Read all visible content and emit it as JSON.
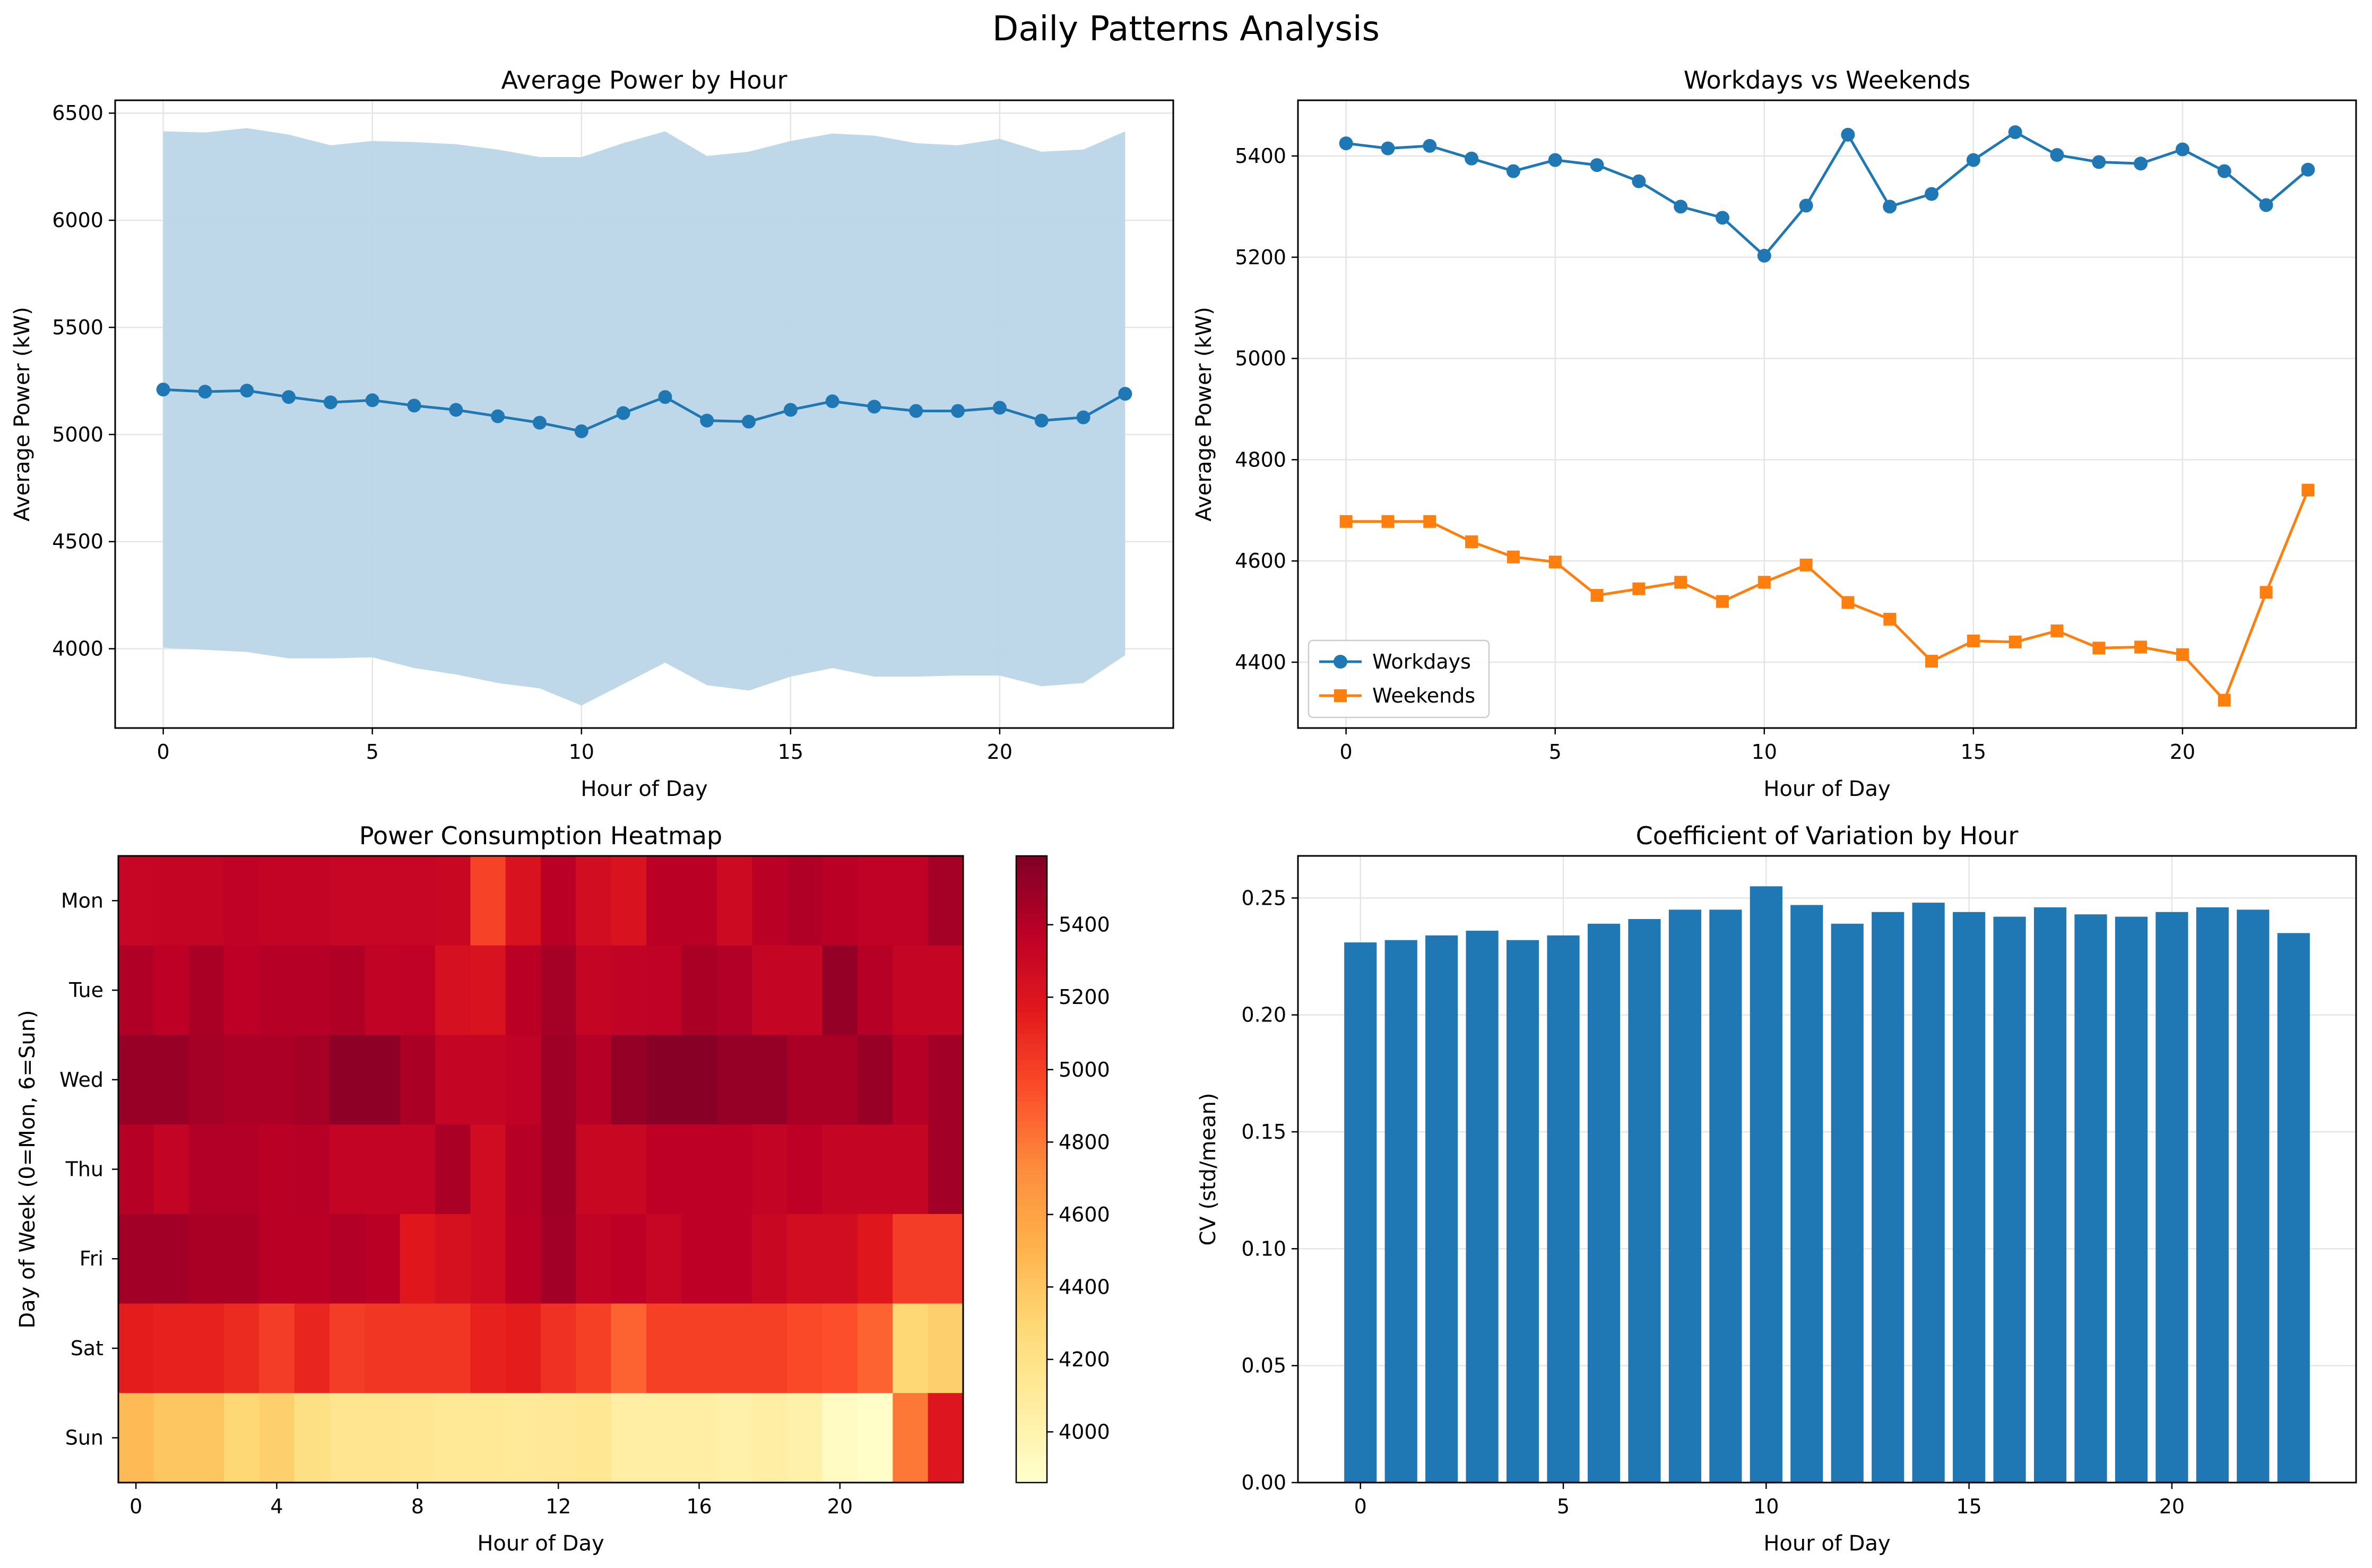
{
  "figure_title": "Daily Patterns Analysis",
  "colors": {
    "blue": "#1f77b4",
    "orange": "#ff7f0e",
    "band": "#bcd6e8",
    "grid": "#e5e5e5"
  },
  "chart_data": [
    {
      "id": "avg-power",
      "type": "line",
      "title": "Average Power by Hour",
      "xlabel": "Hour of Day",
      "ylabel": "Average Power (kW)",
      "x": [
        0,
        1,
        2,
        3,
        4,
        5,
        6,
        7,
        8,
        9,
        10,
        11,
        12,
        13,
        14,
        15,
        16,
        17,
        18,
        19,
        20,
        21,
        22,
        23
      ],
      "xlim": [
        -1.15,
        24.15
      ],
      "ylim": [
        3630,
        6560
      ],
      "xticks": [
        0,
        5,
        10,
        15,
        20
      ],
      "yticks": [
        4000,
        4500,
        5000,
        5500,
        6000,
        6500
      ],
      "grid": true,
      "series": [
        {
          "values": [
            5210,
            5200,
            5205,
            5175,
            5150,
            5160,
            5135,
            5115,
            5085,
            5055,
            5015,
            5100,
            5175,
            5065,
            5060,
            5115,
            5155,
            5130,
            5110,
            5110,
            5125,
            5065,
            5080,
            5190
          ]
        }
      ],
      "band": {
        "upper": [
          6415,
          6410,
          6430,
          6400,
          6350,
          6370,
          6365,
          6355,
          6330,
          6295,
          6295,
          6360,
          6415,
          6300,
          6320,
          6370,
          6405,
          6395,
          6360,
          6350,
          6380,
          6320,
          6330,
          6415
        ],
        "lower": [
          4005,
          3995,
          3985,
          3955,
          3955,
          3960,
          3910,
          3880,
          3840,
          3815,
          3735,
          3835,
          3935,
          3830,
          3805,
          3870,
          3910,
          3870,
          3870,
          3875,
          3875,
          3825,
          3840,
          3970
        ]
      }
    },
    {
      "id": "workdays-weekends",
      "type": "line",
      "title": "Workdays vs Weekends",
      "xlabel": "Hour of Day",
      "ylabel": "Average Power (kW)",
      "x": [
        0,
        1,
        2,
        3,
        4,
        5,
        6,
        7,
        8,
        9,
        10,
        11,
        12,
        13,
        14,
        15,
        16,
        17,
        18,
        19,
        20,
        21,
        22,
        23
      ],
      "xlim": [
        -1.15,
        24.15
      ],
      "ylim": [
        4270,
        5510
      ],
      "xticks": [
        0,
        5,
        10,
        15,
        20
      ],
      "yticks": [
        4400,
        4600,
        4800,
        5000,
        5200,
        5400
      ],
      "grid": true,
      "legend": "lower-left",
      "series": [
        {
          "name": "Workdays",
          "marker": "circle",
          "values": [
            5425,
            5415,
            5420,
            5395,
            5370,
            5392,
            5382,
            5350,
            5300,
            5278,
            5203,
            5302,
            5442,
            5300,
            5325,
            5392,
            5447,
            5402,
            5388,
            5385,
            5413,
            5370,
            5303,
            5373
          ]
        },
        {
          "name": "Weekends",
          "marker": "square",
          "values": [
            4678,
            4678,
            4678,
            4638,
            4608,
            4598,
            4532,
            4545,
            4558,
            4520,
            4558,
            4592,
            4518,
            4485,
            4402,
            4442,
            4440,
            4462,
            4428,
            4430,
            4415,
            4325,
            4538,
            4740
          ]
        }
      ]
    },
    {
      "id": "heatmap",
      "type": "heatmap",
      "title": "Power Consumption Heatmap",
      "xlabel": "Hour of Day",
      "ylabel": "Day of Week (0=Mon, 6=Sun)",
      "xticks": [
        0,
        4,
        8,
        12,
        16,
        20
      ],
      "rows": [
        "Mon",
        "Tue",
        "Wed",
        "Thu",
        "Fri",
        "Sat",
        "Sun"
      ],
      "colorbar_ticks": [
        4000,
        4200,
        4400,
        4600,
        4800,
        5000,
        5200,
        5400
      ],
      "vmin": 3860,
      "vmax": 5590,
      "values": [
        [
          5320,
          5330,
          5330,
          5360,
          5340,
          5340,
          5320,
          5320,
          5320,
          5310,
          4990,
          5220,
          5380,
          5260,
          5220,
          5380,
          5380,
          5290,
          5380,
          5420,
          5380,
          5360,
          5360,
          5460
        ],
        [
          5420,
          5370,
          5440,
          5370,
          5400,
          5400,
          5420,
          5350,
          5360,
          5240,
          5220,
          5380,
          5460,
          5330,
          5350,
          5360,
          5440,
          5410,
          5330,
          5330,
          5520,
          5400,
          5330,
          5330
        ],
        [
          5500,
          5500,
          5460,
          5430,
          5430,
          5460,
          5540,
          5540,
          5440,
          5330,
          5330,
          5360,
          5480,
          5400,
          5520,
          5560,
          5560,
          5510,
          5510,
          5440,
          5440,
          5500,
          5400,
          5470
        ],
        [
          5400,
          5340,
          5410,
          5410,
          5380,
          5390,
          5340,
          5340,
          5340,
          5440,
          5270,
          5400,
          5480,
          5310,
          5310,
          5370,
          5370,
          5370,
          5340,
          5370,
          5330,
          5330,
          5330,
          5470
        ],
        [
          5470,
          5470,
          5440,
          5440,
          5380,
          5380,
          5410,
          5380,
          5180,
          5230,
          5270,
          5380,
          5470,
          5350,
          5370,
          5320,
          5370,
          5370,
          5310,
          5260,
          5260,
          5180,
          5010,
          5010
        ],
        [
          5150,
          5130,
          5130,
          5090,
          5010,
          5110,
          5010,
          5040,
          5040,
          5040,
          5130,
          5150,
          5060,
          5000,
          4870,
          5000,
          5000,
          5000,
          5000,
          4960,
          4940,
          4870,
          4300,
          4340
        ],
        [
          4460,
          4400,
          4400,
          4300,
          4340,
          4220,
          4160,
          4160,
          4150,
          4130,
          4130,
          4110,
          4120,
          4140,
          4060,
          4060,
          4060,
          4030,
          4060,
          4030,
          3910,
          3880,
          4800,
          5200
        ]
      ]
    },
    {
      "id": "cv",
      "type": "bar",
      "title": "Coefficient of Variation by Hour",
      "xlabel": "Hour of Day",
      "ylabel": "CV (std/mean)",
      "x": [
        0,
        1,
        2,
        3,
        4,
        5,
        6,
        7,
        8,
        9,
        10,
        11,
        12,
        13,
        14,
        15,
        16,
        17,
        18,
        19,
        20,
        21,
        22,
        23
      ],
      "xlim": [
        -1.54,
        24.54
      ],
      "ylim": [
        0,
        0.268
      ],
      "xticks": [
        0,
        5,
        10,
        15,
        20
      ],
      "yticks": [
        0.0,
        0.05,
        0.1,
        0.15,
        0.2,
        0.25
      ],
      "grid": true,
      "values": [
        0.231,
        0.232,
        0.234,
        0.236,
        0.232,
        0.234,
        0.239,
        0.241,
        0.245,
        0.245,
        0.255,
        0.247,
        0.239,
        0.244,
        0.248,
        0.244,
        0.242,
        0.246,
        0.243,
        0.242,
        0.244,
        0.246,
        0.245,
        0.235
      ]
    }
  ]
}
